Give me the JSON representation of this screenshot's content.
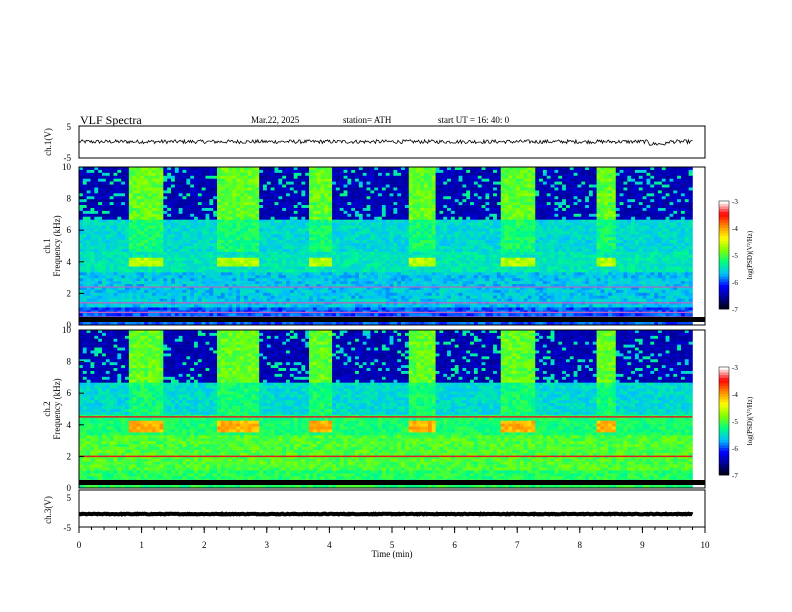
{
  "header": {
    "title": "VLF  Spectra",
    "date": "Mar.22, 2025",
    "station": "station= ATH",
    "start": "start  UT  =   16: 40: 0"
  },
  "colors": {
    "background": "#ffffff",
    "axis": "#000000",
    "colormap": [
      "#000000",
      "#00008b",
      "#0000ff",
      "#00bfff",
      "#00ff7f",
      "#7fff00",
      "#ffff00",
      "#ff8c00",
      "#ff0000",
      "#ffffff"
    ]
  },
  "chart_data": [
    {
      "id": "ch1_waveform",
      "type": "line",
      "ylabel": "ch.1(V)",
      "ylim": [
        -5,
        5
      ],
      "yticks": [
        "5",
        "-5"
      ],
      "xlim": [
        0,
        10
      ],
      "series": [
        {
          "trace": "noise",
          "baseline": 0.1,
          "amplitude": 0.6
        }
      ]
    },
    {
      "id": "ch1_spectrogram",
      "type": "heatmap",
      "ylabel_top": "ch.1",
      "ylabel": "Frequency  (kHz)",
      "ylim": [
        0,
        10
      ],
      "yticks": [
        "0",
        "2",
        "4",
        "6",
        "8",
        "10"
      ],
      "xlim": [
        0,
        10
      ],
      "colorbar": {
        "label": "log(PSD)(V²/Hz)",
        "range": [
          -7,
          -3
        ],
        "ticks": [
          "-3",
          "-4",
          "-5",
          "-6",
          "-7"
        ]
      },
      "bursts_min": [
        [
          0.8,
          1.35
        ],
        [
          2.2,
          2.85
        ],
        [
          3.7,
          4.05
        ],
        [
          5.25,
          5.7
        ],
        [
          6.75,
          7.3
        ],
        [
          8.25,
          8.6
        ]
      ],
      "enhanced_band_khz": [
        3.7,
        4.3
      ],
      "lines_khz": [
        0.5,
        0.8,
        1.4,
        2.4
      ]
    },
    {
      "id": "ch2_spectrogram",
      "type": "heatmap",
      "ylabel_top": "ch.2",
      "ylabel": "Frequency  (kHz)",
      "ylim": [
        0,
        10
      ],
      "yticks": [
        "0",
        "2",
        "4",
        "6",
        "8",
        "10"
      ],
      "xlim": [
        0,
        10
      ],
      "colorbar": {
        "label": "log(PSD)(V²/Hz)",
        "range": [
          -7,
          -3
        ],
        "ticks": [
          "-3",
          "-4",
          "-5",
          "-6",
          "-7"
        ]
      },
      "bursts_min": [
        [
          0.8,
          1.35
        ],
        [
          2.2,
          2.85
        ],
        [
          3.7,
          4.05
        ],
        [
          5.25,
          5.7
        ],
        [
          6.75,
          7.3
        ],
        [
          8.25,
          8.6
        ]
      ],
      "enhanced_band_khz": [
        3.5,
        4.3
      ],
      "red_lines_khz": [
        2.0,
        4.5
      ]
    },
    {
      "id": "ch3_waveform",
      "type": "line",
      "ylabel": "ch.3(V)",
      "ylim": [
        -5,
        5
      ],
      "yticks": [
        "5",
        "-5"
      ],
      "xlim": [
        0,
        10
      ],
      "xticks": [
        "0",
        "1",
        "2",
        "3",
        "4",
        "5",
        "6",
        "7",
        "8",
        "9",
        "10"
      ],
      "xlabel": "Time  (min)",
      "series": [
        {
          "trace": "flat",
          "baseline": -1.5,
          "amplitude": 0.1
        }
      ]
    }
  ]
}
